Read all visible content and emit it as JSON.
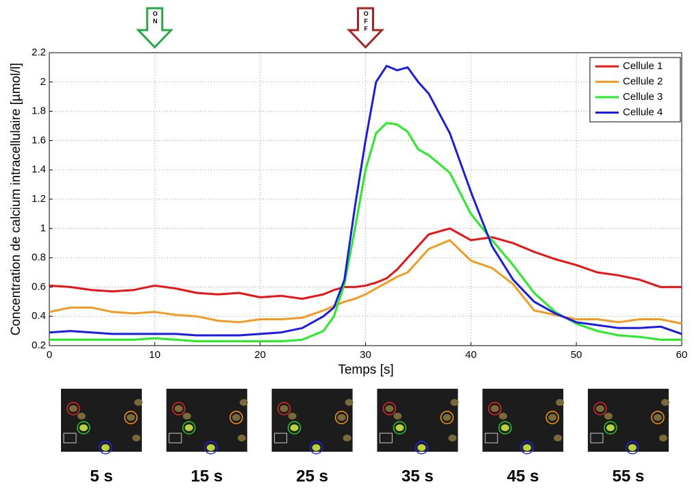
{
  "chart_data": {
    "type": "line",
    "ylabel": "Concentration de calcium intracellulaire [µmol/l]",
    "xlabel": "Temps [s]",
    "x": [
      0,
      2,
      4,
      6,
      8,
      10,
      12,
      14,
      16,
      18,
      20,
      22,
      24,
      26,
      27,
      28,
      29,
      30,
      31,
      32,
      33,
      34,
      35,
      36,
      38,
      40,
      42,
      44,
      46,
      48,
      50,
      52,
      54,
      56,
      58,
      60
    ],
    "series": [
      {
        "name": "Cellule 1",
        "color": "#ee1111",
        "values": [
          0.61,
          0.6,
          0.58,
          0.57,
          0.58,
          0.61,
          0.59,
          0.56,
          0.55,
          0.56,
          0.53,
          0.54,
          0.52,
          0.55,
          0.58,
          0.6,
          0.6,
          0.61,
          0.63,
          0.66,
          0.72,
          0.8,
          0.88,
          0.96,
          1.0,
          0.92,
          0.94,
          0.9,
          0.84,
          0.79,
          0.75,
          0.7,
          0.68,
          0.65,
          0.6,
          0.6
        ]
      },
      {
        "name": "Cellule 2",
        "color": "#f59a1e",
        "values": [
          0.43,
          0.46,
          0.46,
          0.43,
          0.42,
          0.43,
          0.41,
          0.4,
          0.37,
          0.36,
          0.38,
          0.38,
          0.39,
          0.44,
          0.47,
          0.5,
          0.52,
          0.55,
          0.59,
          0.63,
          0.67,
          0.7,
          0.78,
          0.86,
          0.92,
          0.78,
          0.73,
          0.62,
          0.44,
          0.41,
          0.38,
          0.38,
          0.36,
          0.38,
          0.38,
          0.35
        ]
      },
      {
        "name": "Cellule 3",
        "color": "#22ee22",
        "values": [
          0.24,
          0.24,
          0.24,
          0.24,
          0.24,
          0.25,
          0.24,
          0.23,
          0.23,
          0.23,
          0.23,
          0.23,
          0.24,
          0.3,
          0.4,
          0.62,
          1.0,
          1.4,
          1.65,
          1.72,
          1.71,
          1.66,
          1.54,
          1.5,
          1.38,
          1.1,
          0.92,
          0.75,
          0.56,
          0.43,
          0.35,
          0.3,
          0.27,
          0.26,
          0.24,
          0.24
        ]
      },
      {
        "name": "Cellule 4",
        "color": "#1a1aee",
        "values": [
          0.29,
          0.3,
          0.29,
          0.28,
          0.28,
          0.28,
          0.28,
          0.27,
          0.27,
          0.27,
          0.28,
          0.29,
          0.32,
          0.4,
          0.46,
          0.65,
          1.15,
          1.6,
          2.0,
          2.11,
          2.08,
          2.1,
          2.0,
          1.92,
          1.65,
          1.25,
          0.88,
          0.65,
          0.5,
          0.42,
          0.36,
          0.34,
          0.32,
          0.32,
          0.33,
          0.28
        ]
      }
    ],
    "xlim": [
      0,
      60
    ],
    "xticks": [
      0,
      10,
      20,
      30,
      40,
      50,
      60
    ],
    "ylim": [
      0.2,
      2.2
    ],
    "yticks": [
      0.2,
      0.4,
      0.6,
      0.8,
      1,
      1.2,
      1.4,
      1.6,
      1.8,
      2,
      2.2
    ],
    "grid": true,
    "legend": "northeast",
    "annotations": [
      {
        "text": "ON",
        "x": 10,
        "color": "#22aa44"
      },
      {
        "text": "OFF",
        "x": 30,
        "color": "#aa2222"
      }
    ],
    "snapshots": [
      "5 s",
      "15 s",
      "25 s",
      "35 s",
      "45 s",
      "55 s"
    ]
  }
}
